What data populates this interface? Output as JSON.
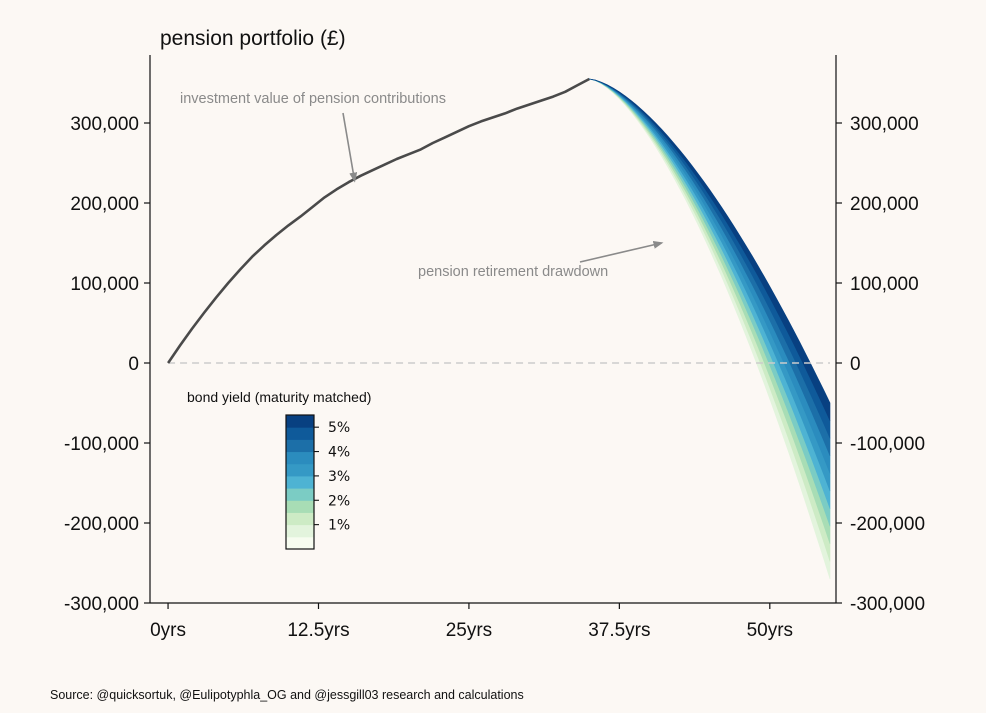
{
  "chart_data": {
    "type": "line",
    "title": "pension portfolio (£)",
    "xlabel": "",
    "ylabel": "",
    "xlim": [
      -1.5,
      55.5
    ],
    "ylim": [
      -300000,
      385000
    ],
    "x_ticks": [
      0,
      12.5,
      25,
      37.5,
      50
    ],
    "x_tick_labels": [
      "0yrs",
      "12.5yrs",
      "25yrs",
      "37.5yrs",
      "50yrs"
    ],
    "y_ticks": [
      300000,
      200000,
      100000,
      0,
      -100000,
      -200000,
      -300000
    ],
    "y_tick_labels": [
      "300,000",
      "200,000",
      "100,000",
      "0",
      "-100,000",
      "-200,000",
      "-300,000"
    ],
    "accumulation_series": {
      "x": [
        0,
        1,
        2,
        3,
        4,
        5,
        6,
        7,
        8,
        9,
        10,
        11,
        12,
        13,
        14,
        15,
        16,
        17,
        18,
        19,
        20,
        21,
        22,
        23,
        24,
        25,
        26,
        27,
        28,
        29,
        30,
        31,
        32,
        33,
        34,
        35
      ],
      "y": [
        0,
        22000,
        43000,
        63000,
        82000,
        100000,
        117000,
        133000,
        147000,
        160000,
        172000,
        183000,
        195000,
        207000,
        217000,
        226000,
        234000,
        241000,
        248000,
        255000,
        261000,
        267000,
        275000,
        282000,
        289000,
        296000,
        302000,
        307000,
        312000,
        318000,
        323000,
        328000,
        333000,
        339000,
        347000,
        355000
      ]
    },
    "drawdown_series": {
      "x_start": 35,
      "x_end": 55,
      "y_start": 355000,
      "end_value_at_5pct": -50000,
      "end_value_at_0_5pct": -270000,
      "band_count": 10
    },
    "zero_line": {
      "y": 0,
      "style": "dashed"
    },
    "annotations": [
      {
        "text": "investment value of pension contributions",
        "arrow_to_x": 15.5,
        "arrow_to_y": 228000
      },
      {
        "text": "pension retirement drawdown",
        "arrow_to_x": 41,
        "arrow_to_y": 150000
      }
    ],
    "colorbar": {
      "title": "bond yield (maturity matched)",
      "min": 0,
      "max": 5.5,
      "ticks": [
        1,
        2,
        3,
        4,
        5
      ],
      "tick_labels": [
        "1%",
        "2%",
        "3%",
        "4%",
        "5%"
      ],
      "colors": [
        "#f7fcf0",
        "#e3f4dd",
        "#cdebc5",
        "#a8ddb5",
        "#7bccc4",
        "#4eb3d3",
        "#3599c5",
        "#2b8cbe",
        "#1c6fa8",
        "#0f5a9a",
        "#084081"
      ]
    },
    "axes_both_sides": true
  },
  "source": "Source: @quicksortuk, @Eulipotyphla_OG and @jessgill03 research and calculations",
  "colors": {
    "background": "#fcf8f4",
    "line": "#4a4a4a",
    "annotation": "#8a8a8a",
    "zero_line": "#cccccc"
  }
}
